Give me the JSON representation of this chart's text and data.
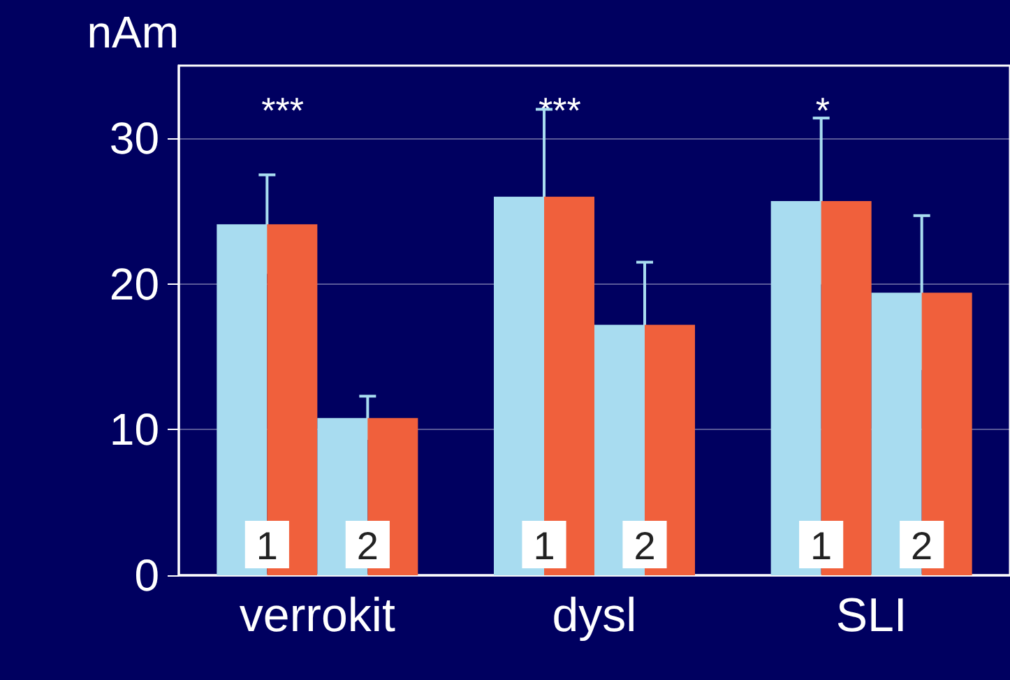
{
  "chart_data": {
    "type": "bar",
    "ylabel": "nAm",
    "categories": [
      "verrokit",
      "dysl",
      "SLI"
    ],
    "series": [
      {
        "name": "1",
        "color": "#a8dcf0",
        "values": [
          24.1,
          26.0,
          25.7
        ],
        "errors": [
          3.4,
          6.0,
          5.7
        ]
      },
      {
        "color": "#f0603c",
        "values": [
          24.1,
          26.0,
          25.7
        ]
      },
      {
        "name": "2",
        "color": "#a8dcf0",
        "values": [
          10.8,
          17.2,
          19.4
        ],
        "errors": [
          1.5,
          4.3,
          5.3
        ]
      },
      {
        "color": "#f0603c",
        "values": [
          10.8,
          17.2,
          19.4
        ]
      }
    ],
    "ylim": [
      0,
      35
    ],
    "yticks": [
      0,
      10,
      20,
      30
    ],
    "grid": "y",
    "legend": false,
    "annotations": [
      "***",
      "***",
      "*"
    ]
  }
}
